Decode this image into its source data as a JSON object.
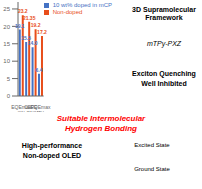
{
  "chart_data": {
    "type": "bar",
    "categories": [
      "EQEmax\n(%)",
      "CE\n(cd/A)",
      "PE\n(lm/W)",
      "EQEmax\n(%)"
    ],
    "series": [
      {
        "name": "10 wt% doped in mCP",
        "color": "#4472C4",
        "values": [
          19.1,
          15.5,
          14.0,
          6.4
        ],
        "value_labels": [
          "19.1",
          "15.5",
          "14.0",
          "6.4"
        ]
      },
      {
        "name": "Non-doped",
        "color": "#E84E1B",
        "values": [
          23.2,
          21.35,
          19.2,
          17.2
        ],
        "value_labels": [
          "23.2",
          "21.35",
          "19.2",
          "17.2"
        ]
      }
    ],
    "ylim": [
      0,
      27
    ],
    "yticks": [
      0,
      5,
      10,
      15,
      20,
      25
    ],
    "data_labels": true,
    "legend": "upper right",
    "grid": false,
    "annotations": [
      {
        "text": "Suitable Intermolecular",
        "color": "red"
      },
      {
        "text": "Hydrogen Bonding",
        "color": "red"
      },
      {
        "text": "3D Supramolecular\nFramework"
      },
      {
        "text": "mTPy-PXZ"
      },
      {
        "text": "High-performance"
      },
      {
        "text": "Non-doped OLED"
      },
      {
        "text": "Exciton Quenching"
      },
      {
        "text": "Well Inhibited"
      },
      {
        "text": "Excited State"
      },
      {
        "text": "Ground State"
      }
    ]
  }
}
